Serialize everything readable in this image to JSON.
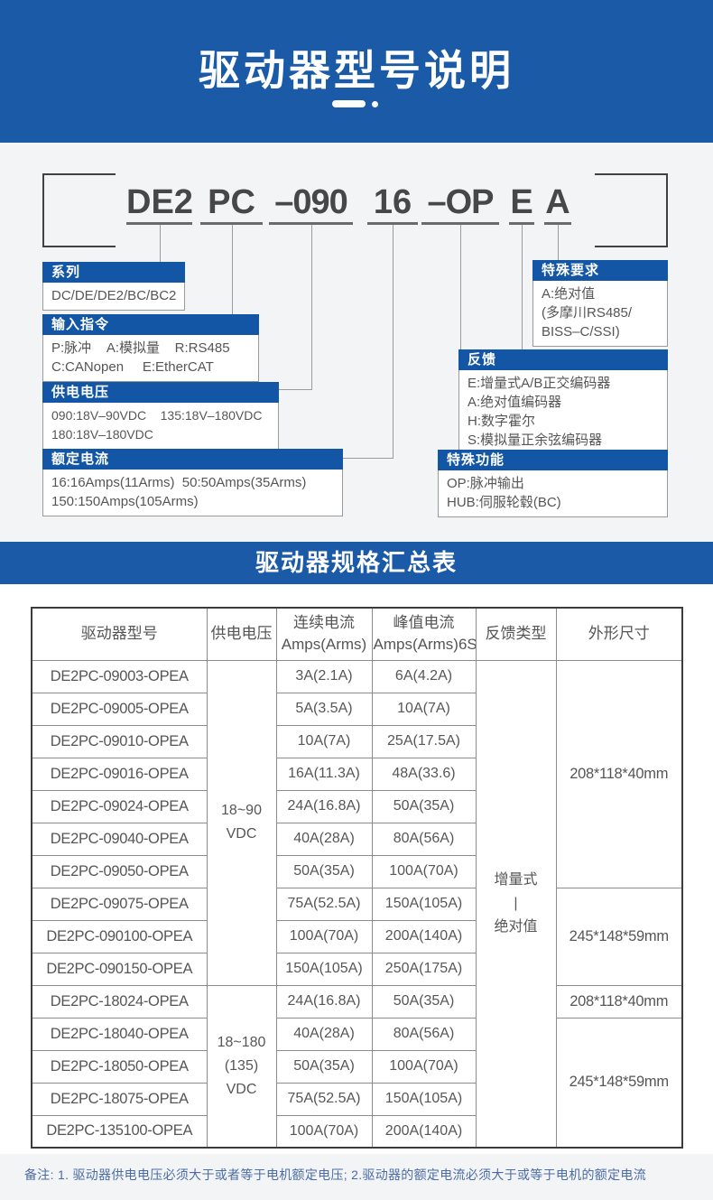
{
  "header": {
    "title": "驱动器型号说明"
  },
  "model_code": {
    "segments": [
      "DE2",
      "PC",
      "–090",
      "16",
      "–OP",
      "E",
      "A"
    ]
  },
  "callouts": {
    "series": {
      "title": "系列",
      "lines": [
        "DC/DE/DE2/BC/BC2"
      ]
    },
    "input": {
      "title": "输入指令",
      "lines": [
        "P:脉冲    A:模拟量    R:RS485",
        "C:CANopen     E:EtherCAT"
      ]
    },
    "voltage": {
      "title": "供电电压",
      "lines": [
        "090:18V–90VDC    135:18V–180VDC",
        "180:18V–180VDC"
      ]
    },
    "current": {
      "title": "额定电流",
      "lines": [
        "16:16Amps(11Arms)  50:50Amps(35Arms)",
        "150:150Amps(105Arms)"
      ]
    },
    "special_req": {
      "title": "特殊要求",
      "lines": [
        "A:绝对值",
        "(多摩川RS485/",
        "BISS–C/SSI)"
      ]
    },
    "feedback": {
      "title": "反馈",
      "lines": [
        "E:增量式A/B正交编码器",
        "A:绝对值编码器",
        "H:数字霍尔",
        "S:模拟量正余弦编码器"
      ]
    },
    "special_func": {
      "title": "特殊功能",
      "lines": [
        "OP:脉冲输出",
        "HUB:伺服轮毂(BC)"
      ]
    }
  },
  "summary": {
    "title": "驱动器规格汇总表"
  },
  "spec_table": {
    "headers": [
      "驱动器型号",
      "供电电压",
      "连续电流\nAmps(Arms)",
      "峰值电流\nAmps(Arms)6S",
      "反馈类型",
      "外形尺寸"
    ],
    "rows": [
      {
        "model": "DE2PC-09003-OPEA",
        "continuous": "3A(2.1A)",
        "peak": "6A(4.2A)"
      },
      {
        "model": "DE2PC-09005-OPEA",
        "continuous": "5A(3.5A)",
        "peak": "10A(7A)"
      },
      {
        "model": "DE2PC-09010-OPEA",
        "continuous": "10A(7A)",
        "peak": "25A(17.5A)"
      },
      {
        "model": "DE2PC-09016-OPEA",
        "continuous": "16A(11.3A)",
        "peak": "48A(33.6)"
      },
      {
        "model": "DE2PC-09024-OPEA",
        "continuous": "24A(16.8A)",
        "peak": "50A(35A)"
      },
      {
        "model": "DE2PC-09040-OPEA",
        "continuous": "40A(28A)",
        "peak": "80A(56A)"
      },
      {
        "model": "DE2PC-09050-OPEA",
        "continuous": "50A(35A)",
        "peak": "100A(70A)"
      },
      {
        "model": "DE2PC-09075-OPEA",
        "continuous": "75A(52.5A)",
        "peak": "150A(105A)"
      },
      {
        "model": "DE2PC-090100-OPEA",
        "continuous": "100A(70A)",
        "peak": "200A(140A)"
      },
      {
        "model": "DE2PC-090150-OPEA",
        "continuous": "150A(105A)",
        "peak": "250A(175A)"
      },
      {
        "model": "DE2PC-18024-OPEA",
        "continuous": "24A(16.8A)",
        "peak": "50A(35A)"
      },
      {
        "model": "DE2PC-18040-OPEA",
        "continuous": "40A(28A)",
        "peak": "80A(56A)"
      },
      {
        "model": "DE2PC-18050-OPEA",
        "continuous": "50A(35A)",
        "peak": "100A(70A)"
      },
      {
        "model": "DE2PC-18075-OPEA",
        "continuous": "75A(52.5A)",
        "peak": "150A(105A)"
      },
      {
        "model": "DE2PC-135100-OPEA",
        "continuous": "100A(70A)",
        "peak": "200A(140A)"
      }
    ],
    "voltage_groups": [
      {
        "label": "18~90\nVDC",
        "rows": 10
      },
      {
        "label": "18~180\n(135)\nVDC",
        "rows": 5
      }
    ],
    "feedback_groups": [
      {
        "label": "增量式\n|\n绝对值",
        "rows": 15
      }
    ],
    "dimension_groups": [
      {
        "label": "208*118*40mm",
        "rows": 7
      },
      {
        "label": "245*148*59mm",
        "rows": 3
      },
      {
        "label": "208*118*40mm",
        "rows": 1
      },
      {
        "label": "245*148*59mm",
        "rows": 4
      }
    ]
  },
  "note": "备注: 1. 驱动器供电电压必须大于或者等于电机额定电压; 2.驱动器的额定电流必须大于或等于电机的额定电流"
}
